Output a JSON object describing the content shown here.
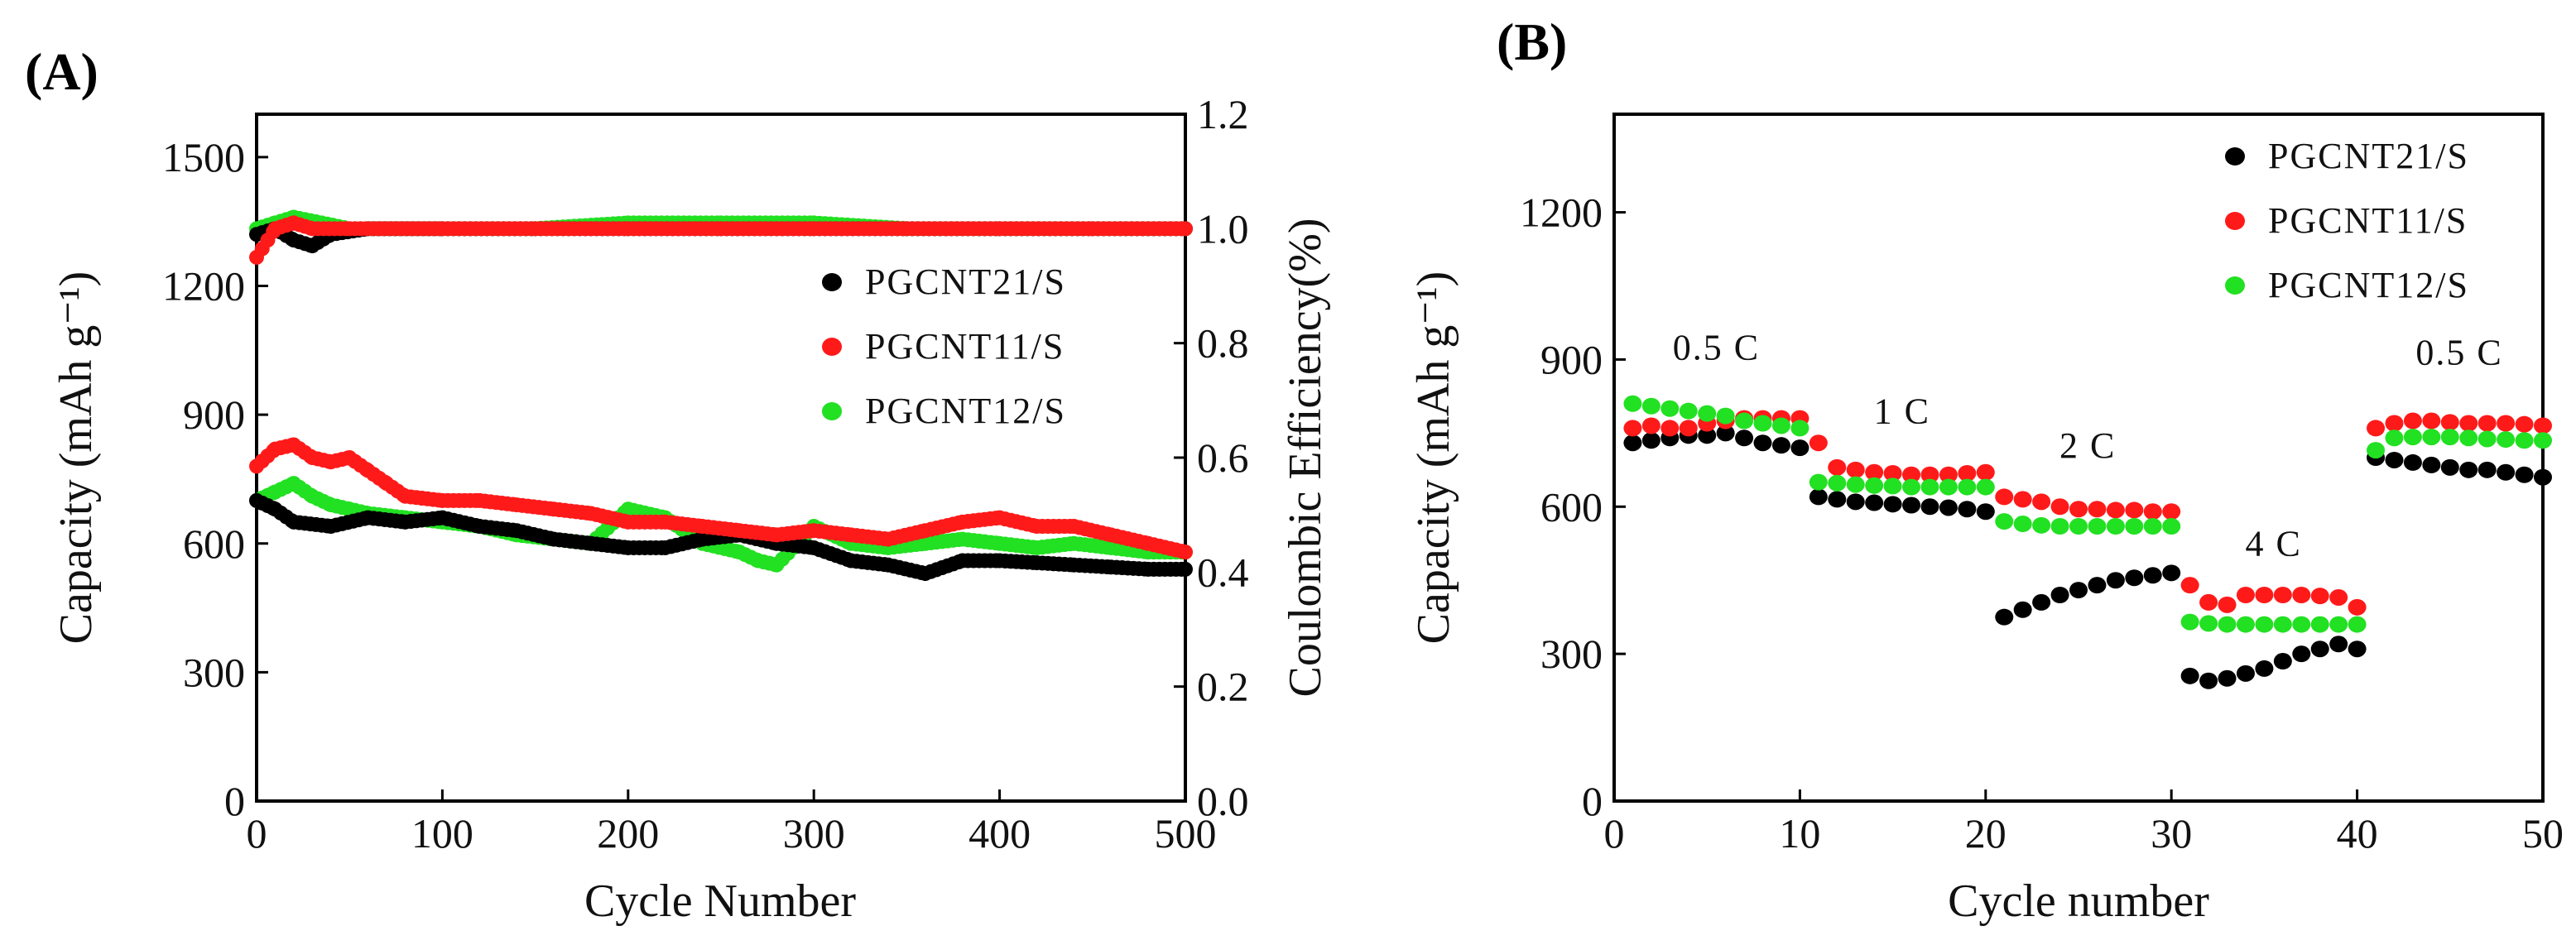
{
  "chart_data": [
    {
      "panel_label": "(A)",
      "type": "scatter",
      "xlabel": "Cycle Number",
      "ylabel": "Capacity (mAh g⁻¹)",
      "y2label": "Coulombic Efficiency(%)",
      "xlim": [
        0,
        500
      ],
      "ylim": [
        0,
        1600
      ],
      "y2lim": [
        0,
        1.2
      ],
      "x_ticks": [
        "0",
        "100",
        "200",
        "300",
        "400",
        "500"
      ],
      "y_ticks": [
        "0",
        "300",
        "600",
        "900",
        "1200",
        "1500"
      ],
      "y2_ticks": [
        "0.0",
        "0.2",
        "0.4",
        "0.6",
        "0.8",
        "1.0",
        "1.2"
      ],
      "legend": "right",
      "series": [
        {
          "name": "PGCNT21/S",
          "color": "#000000",
          "capacity": {
            "x": [
              0,
              10,
              20,
              40,
              60,
              80,
              100,
              120,
              140,
              160,
              180,
              200,
              220,
              240,
              260,
              280,
              300,
              320,
              340,
              360,
              380,
              400,
              420,
              440,
              460,
              480,
              500
            ],
            "y": [
              700,
              680,
              650,
              640,
              660,
              650,
              660,
              640,
              630,
              610,
              600,
              590,
              590,
              610,
              620,
              600,
              590,
              560,
              550,
              530,
              560,
              560,
              555,
              550,
              545,
              540,
              540
            ]
          },
          "efficiency": {
            "x": [
              0,
              10,
              20,
              30,
              40,
              60,
              100,
              150,
              200,
              250,
              300,
              350,
              400,
              450,
              500
            ],
            "y": [
              0.99,
              1.0,
              0.98,
              0.97,
              0.99,
              1.0,
              1.0,
              1.0,
              1.0,
              1.0,
              1.0,
              1.0,
              1.0,
              1.0,
              1.0
            ]
          }
        },
        {
          "name": "PGCNT11/S",
          "color": "#ff1a1a",
          "capacity": {
            "x": [
              0,
              10,
              20,
              30,
              40,
              50,
              60,
              70,
              80,
              100,
              120,
              140,
              160,
              180,
              200,
              220,
              240,
              260,
              280,
              300,
              320,
              340,
              360,
              380,
              400,
              420,
              440,
              460,
              480,
              500
            ],
            "y": [
              780,
              820,
              830,
              800,
              790,
              800,
              770,
              740,
              710,
              700,
              700,
              690,
              680,
              670,
              650,
              650,
              640,
              630,
              620,
              630,
              620,
              610,
              630,
              650,
              660,
              640,
              640,
              620,
              600,
              580
            ]
          },
          "efficiency": {
            "x": [
              0,
              10,
              20,
              30,
              50,
              100,
              150,
              200,
              250,
              300,
              350,
              400,
              450,
              500
            ],
            "y": [
              0.95,
              1.0,
              1.01,
              1.0,
              1.0,
              1.0,
              1.0,
              1.0,
              1.0,
              1.0,
              1.0,
              1.0,
              1.0,
              1.0
            ]
          }
        },
        {
          "name": "PGCNT12/S",
          "color": "#22e022",
          "capacity": {
            "x": [
              0,
              10,
              20,
              30,
              40,
              50,
              60,
              80,
              100,
              120,
              140,
              160,
              180,
              200,
              220,
              240,
              260,
              270,
              280,
              300,
              320,
              340,
              360,
              380,
              400,
              420,
              440,
              460,
              480,
              500
            ],
            "y": [
              700,
              720,
              740,
              710,
              690,
              680,
              670,
              660,
              650,
              640,
              620,
              610,
              600,
              680,
              660,
              600,
              580,
              560,
              550,
              640,
              600,
              590,
              600,
              610,
              600,
              590,
              600,
              590,
              580,
              580
            ]
          },
          "efficiency": {
            "x": [
              0,
              10,
              20,
              50,
              100,
              150,
              200,
              250,
              300,
              350,
              400,
              450,
              500
            ],
            "y": [
              1.0,
              1.01,
              1.02,
              1.0,
              1.0,
              1.0,
              1.01,
              1.01,
              1.01,
              1.0,
              1.0,
              1.0,
              1.0
            ]
          }
        }
      ]
    },
    {
      "panel_label": "(B)",
      "type": "scatter",
      "xlabel": "Cycle number",
      "ylabel": "Capacity (mAh g⁻¹)",
      "xlim": [
        0,
        50
      ],
      "ylim": [
        0,
        1400
      ],
      "x_ticks": [
        "0",
        "10",
        "20",
        "30",
        "40",
        "50"
      ],
      "y_ticks": [
        "0",
        "300",
        "600",
        "900",
        "1200"
      ],
      "legend": "top-right",
      "rate_labels": [
        {
          "text": "0.5 C",
          "x": 5.5,
          "y": 900
        },
        {
          "text": "1 C",
          "x": 15.5,
          "y": 770
        },
        {
          "text": "2 C",
          "x": 25.5,
          "y": 700
        },
        {
          "text": "4 C",
          "x": 35.5,
          "y": 500
        },
        {
          "text": "0.5 C",
          "x": 45.5,
          "y": 890
        }
      ],
      "series": [
        {
          "name": "PGCNT21/S",
          "color": "#000000",
          "x": [
            1,
            2,
            3,
            4,
            5,
            6,
            7,
            8,
            9,
            10,
            11,
            12,
            13,
            14,
            15,
            16,
            17,
            18,
            19,
            20,
            21,
            22,
            23,
            24,
            25,
            26,
            27,
            28,
            29,
            30,
            31,
            32,
            33,
            34,
            35,
            36,
            37,
            38,
            39,
            40,
            41,
            42,
            43,
            44,
            45,
            46,
            47,
            48,
            49,
            50
          ],
          "y": [
            730,
            735,
            740,
            745,
            745,
            750,
            740,
            730,
            725,
            720,
            620,
            615,
            610,
            608,
            605,
            603,
            600,
            598,
            595,
            590,
            375,
            390,
            405,
            420,
            430,
            440,
            450,
            455,
            460,
            465,
            255,
            245,
            250,
            260,
            270,
            285,
            300,
            310,
            320,
            310,
            700,
            695,
            690,
            685,
            680,
            675,
            675,
            670,
            665,
            660
          ]
        },
        {
          "name": "PGCNT11/S",
          "color": "#ff1a1a",
          "x": [
            1,
            2,
            3,
            4,
            5,
            6,
            7,
            8,
            9,
            10,
            11,
            12,
            13,
            14,
            15,
            16,
            17,
            18,
            19,
            20,
            21,
            22,
            23,
            24,
            25,
            26,
            27,
            28,
            29,
            30,
            31,
            32,
            33,
            34,
            35,
            36,
            37,
            38,
            39,
            40,
            41,
            42,
            43,
            44,
            45,
            46,
            47,
            48,
            49,
            50
          ],
          "y": [
            760,
            765,
            760,
            760,
            770,
            775,
            780,
            780,
            780,
            780,
            730,
            680,
            675,
            670,
            668,
            665,
            665,
            665,
            668,
            670,
            620,
            615,
            610,
            600,
            595,
            595,
            593,
            593,
            590,
            590,
            440,
            405,
            400,
            420,
            420,
            420,
            420,
            418,
            415,
            395,
            760,
            770,
            775,
            775,
            772,
            770,
            770,
            770,
            768,
            765
          ]
        },
        {
          "name": "PGCNT12/S",
          "color": "#22e022",
          "x": [
            1,
            2,
            3,
            4,
            5,
            6,
            7,
            8,
            9,
            10,
            11,
            12,
            13,
            14,
            15,
            16,
            17,
            18,
            19,
            20,
            21,
            22,
            23,
            24,
            25,
            26,
            27,
            28,
            29,
            30,
            31,
            32,
            33,
            34,
            35,
            36,
            37,
            38,
            39,
            40,
            41,
            42,
            43,
            44,
            45,
            46,
            47,
            48,
            49,
            50
          ],
          "y": [
            810,
            805,
            800,
            795,
            790,
            785,
            775,
            770,
            765,
            760,
            650,
            648,
            645,
            643,
            642,
            640,
            640,
            640,
            640,
            640,
            570,
            565,
            562,
            560,
            560,
            560,
            560,
            560,
            560,
            560,
            365,
            362,
            360,
            360,
            360,
            360,
            360,
            360,
            360,
            360,
            715,
            740,
            742,
            742,
            742,
            740,
            738,
            737,
            735,
            735
          ]
        }
      ]
    }
  ]
}
